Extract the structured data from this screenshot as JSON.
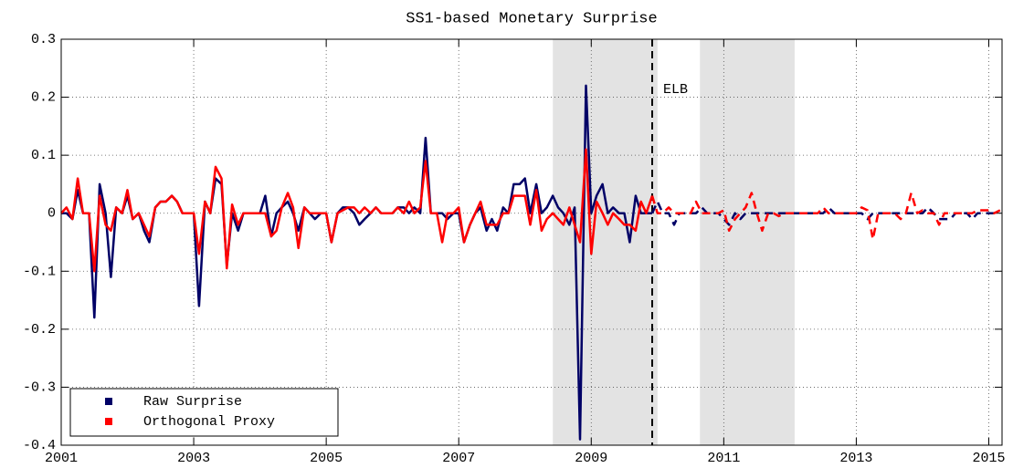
{
  "chart_data": {
    "type": "line",
    "title": "SS1-based Monetary Surprise",
    "x": [
      2001.0,
      2001.08,
      2001.17,
      2001.25,
      2001.33,
      2001.42,
      2001.5,
      2001.58,
      2001.67,
      2001.75,
      2001.83,
      2001.92,
      2002.0,
      2002.08,
      2002.17,
      2002.25,
      2002.33,
      2002.42,
      2002.5,
      2002.58,
      2002.67,
      2002.75,
      2002.83,
      2002.92,
      2003.0,
      2003.08,
      2003.17,
      2003.25,
      2003.33,
      2003.42,
      2003.5,
      2003.58,
      2003.67,
      2003.75,
      2003.83,
      2003.92,
      2004.0,
      2004.08,
      2004.17,
      2004.25,
      2004.33,
      2004.42,
      2004.5,
      2004.58,
      2004.67,
      2004.75,
      2004.83,
      2004.92,
      2005.0,
      2005.08,
      2005.17,
      2005.25,
      2005.33,
      2005.42,
      2005.5,
      2005.58,
      2005.67,
      2005.75,
      2005.83,
      2005.92,
      2006.0,
      2006.08,
      2006.17,
      2006.25,
      2006.33,
      2006.42,
      2006.5,
      2006.58,
      2006.67,
      2006.75,
      2006.83,
      2006.92,
      2007.0,
      2007.08,
      2007.17,
      2007.25,
      2007.33,
      2007.42,
      2007.5,
      2007.58,
      2007.67,
      2007.75,
      2007.83,
      2007.92,
      2008.0,
      2008.08,
      2008.17,
      2008.25,
      2008.33,
      2008.42,
      2008.5,
      2008.58,
      2008.67,
      2008.75,
      2008.83,
      2008.92,
      2009.0,
      2009.08,
      2009.17,
      2009.25,
      2009.33,
      2009.42,
      2009.5,
      2009.58,
      2009.67,
      2009.75,
      2009.83,
      2009.92,
      2010.0,
      2010.08,
      2010.17,
      2010.25,
      2010.33,
      2010.42,
      2010.5,
      2010.58,
      2010.67,
      2010.75,
      2010.83,
      2010.92,
      2011.0,
      2011.08,
      2011.17,
      2011.25,
      2011.33,
      2011.42,
      2011.5,
      2011.58,
      2011.67,
      2011.75,
      2011.83,
      2011.92,
      2012.0,
      2012.08,
      2012.17,
      2012.25,
      2012.33,
      2012.42,
      2012.5,
      2012.58,
      2012.67,
      2012.75,
      2012.83,
      2012.92,
      2013.0,
      2013.08,
      2013.17,
      2013.25,
      2013.33,
      2013.42,
      2013.5,
      2013.58,
      2013.67,
      2013.75,
      2013.83,
      2013.92,
      2014.0,
      2014.08,
      2014.17,
      2014.25,
      2014.33,
      2014.42,
      2014.5,
      2014.58,
      2014.67,
      2014.75,
      2014.83,
      2014.92,
      2015.0,
      2015.08,
      2015.17
    ],
    "series": [
      {
        "name": "Raw Surprise",
        "color": "#000066",
        "values": [
          0,
          0,
          -0.01,
          0.04,
          0,
          0,
          -0.18,
          0.05,
          0,
          -0.11,
          0.01,
          0,
          0.03,
          -0.01,
          0,
          -0.03,
          -0.05,
          0.01,
          0.02,
          0.02,
          0.03,
          0.02,
          0,
          0,
          0,
          -0.16,
          0.02,
          0,
          0.06,
          0.05,
          -0.09,
          0,
          -0.03,
          0,
          0,
          0,
          0,
          0.03,
          -0.04,
          0,
          0.01,
          0.02,
          0,
          -0.03,
          0.01,
          0,
          -0.01,
          0,
          0,
          -0.05,
          0,
          0.01,
          0.01,
          0,
          -0.02,
          -0.01,
          0,
          0.01,
          0,
          0,
          0,
          0.01,
          0.01,
          0,
          0.01,
          0,
          0.13,
          0,
          0,
          0,
          -0.01,
          0,
          0,
          -0.05,
          -0.02,
          0,
          0.01,
          -0.03,
          -0.01,
          -0.03,
          0.01,
          0,
          0.05,
          0.05,
          0.06,
          0,
          0.05,
          0,
          0.01,
          0.03,
          0.01,
          0,
          -0.02,
          0.01,
          -0.39,
          0.22,
          0,
          0.03,
          0.05,
          0,
          0.01,
          0,
          0,
          -0.05,
          0.03,
          0,
          0,
          0,
          0.02,
          0,
          0,
          -0.02,
          0,
          0,
          0,
          0,
          0.01,
          0,
          0,
          0,
          -0.01,
          -0.02,
          0,
          -0.01,
          0,
          0,
          0,
          0,
          0,
          0,
          0,
          0,
          0,
          0,
          0,
          0,
          0,
          0,
          0,
          0.01,
          0,
          0,
          0,
          0,
          0,
          0,
          -0.01,
          0,
          0,
          0,
          0,
          0,
          0,
          0,
          0,
          0,
          0,
          0.01,
          0,
          -0.01,
          -0.01,
          -0.01,
          0,
          0,
          0,
          -0.01,
          0,
          0,
          0,
          0,
          0
        ]
      },
      {
        "name": "Orthogonal Proxy",
        "color": "#ff0000",
        "values": [
          0,
          0.01,
          -0.01,
          0.06,
          0,
          0,
          -0.1,
          0.03,
          -0.02,
          -0.03,
          0.01,
          0,
          0.04,
          -0.01,
          0,
          -0.02,
          -0.04,
          0.01,
          0.02,
          0.02,
          0.03,
          0.02,
          0,
          0,
          0,
          -0.07,
          0.02,
          0,
          0.08,
          0.06,
          -0.095,
          0.015,
          -0.02,
          0,
          0,
          0,
          0,
          0,
          -0.04,
          -0.03,
          0.01,
          0.035,
          0.01,
          -0.06,
          0.01,
          0,
          0,
          0,
          0,
          -0.05,
          0,
          0.005,
          0.01,
          0.01,
          0,
          0.01,
          0,
          0.01,
          0,
          0,
          0,
          0.01,
          0,
          0.02,
          0,
          0.01,
          0.09,
          0,
          0,
          -0.05,
          0,
          0,
          0.01,
          -0.05,
          -0.02,
          0,
          0.02,
          -0.02,
          -0.02,
          -0.02,
          0,
          0,
          0.03,
          0.03,
          0.03,
          -0.02,
          0.04,
          -0.03,
          -0.01,
          0,
          -0.01,
          -0.02,
          0.01,
          -0.02,
          -0.05,
          0.11,
          -0.07,
          0.02,
          0,
          -0.02,
          0,
          -0.01,
          -0.02,
          -0.02,
          -0.03,
          0.02,
          0,
          0.03,
          0,
          0,
          0.01,
          0,
          0,
          0,
          0,
          0.02,
          0,
          0,
          0,
          0,
          0.005,
          -0.03,
          -0.01,
          0,
          0.01,
          0.035,
          0,
          -0.03,
          0,
          0,
          -0.005,
          0,
          0,
          0,
          0,
          0,
          0,
          0,
          0.01,
          0,
          0,
          0,
          0,
          0,
          0,
          0.01,
          0.005,
          -0.045,
          0,
          0,
          0,
          0,
          -0.01,
          0,
          0.035,
          0,
          0.005,
          0,
          0,
          -0.02,
          0,
          0,
          0,
          0,
          0,
          0,
          0.005,
          0.005,
          0.005,
          0,
          0.005
        ]
      }
    ],
    "elb": {
      "x": 2009.92,
      "label": "ELB"
    },
    "shaded_periods": [
      [
        2008.42,
        2010.0
      ],
      [
        2010.64,
        2012.07
      ]
    ],
    "xlim": [
      2001,
      2015.2
    ],
    "xticks": [
      2001,
      2003,
      2005,
      2007,
      2009,
      2011,
      2013,
      2015
    ],
    "ylim": [
      -0.4,
      0.3
    ],
    "yticks": [
      0.3,
      0.2,
      0.1,
      0,
      -0.1,
      -0.2,
      -0.3,
      -0.4
    ],
    "grid": true,
    "legend": "lower left"
  }
}
